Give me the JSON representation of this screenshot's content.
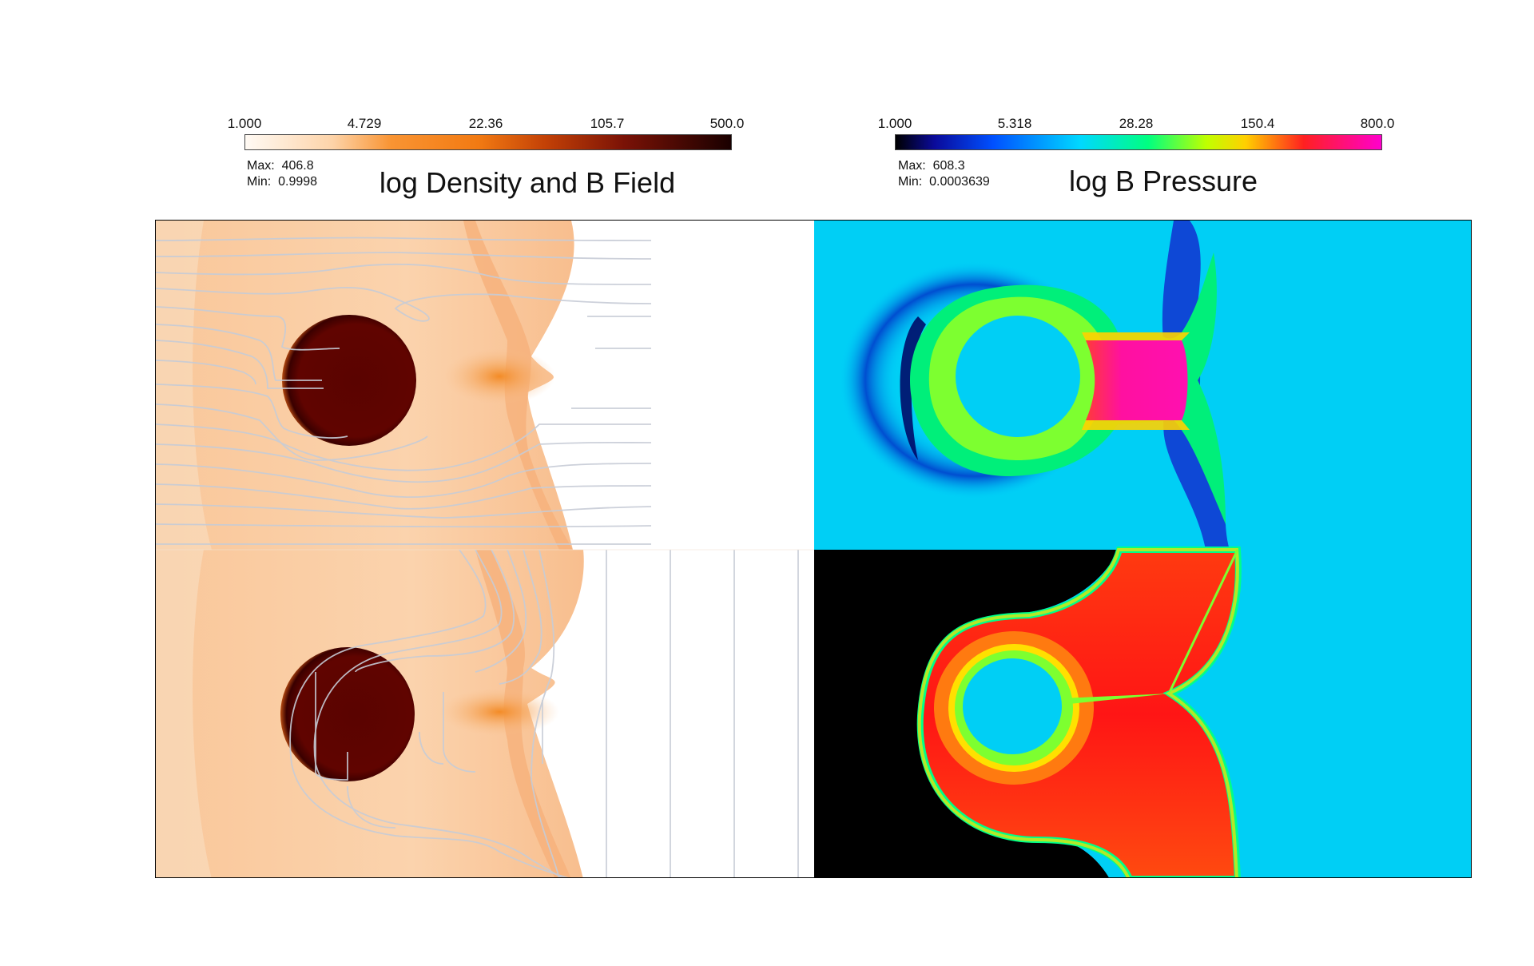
{
  "left_panel": {
    "title": "log Density and B Field",
    "colorbar_ticks": [
      "1.000",
      "4.729",
      "22.36",
      "105.7",
      "500.0"
    ],
    "max_label": "Max:",
    "max_value": "406.8",
    "min_label": "Min:",
    "min_value": "0.9998",
    "colormap": [
      "#fffaf4",
      "#fdd3a8",
      "#f99433",
      "#f27a12",
      "#c24006",
      "#7a1206",
      "#1a0000"
    ]
  },
  "right_panel": {
    "title": "log B Pressure",
    "colorbar_ticks": [
      "1.000",
      "5.318",
      "28.28",
      "150.4",
      "800.0"
    ],
    "max_label": "Max:",
    "max_value": "608.3",
    "min_label": "Min:",
    "min_value": "0.0003639",
    "colormap": [
      "#000000",
      "#0a0a9a",
      "#0050ff",
      "#00d8ff",
      "#00ff80",
      "#c0ff00",
      "#ffd000",
      "#ff2020",
      "#ff00cc"
    ]
  }
}
